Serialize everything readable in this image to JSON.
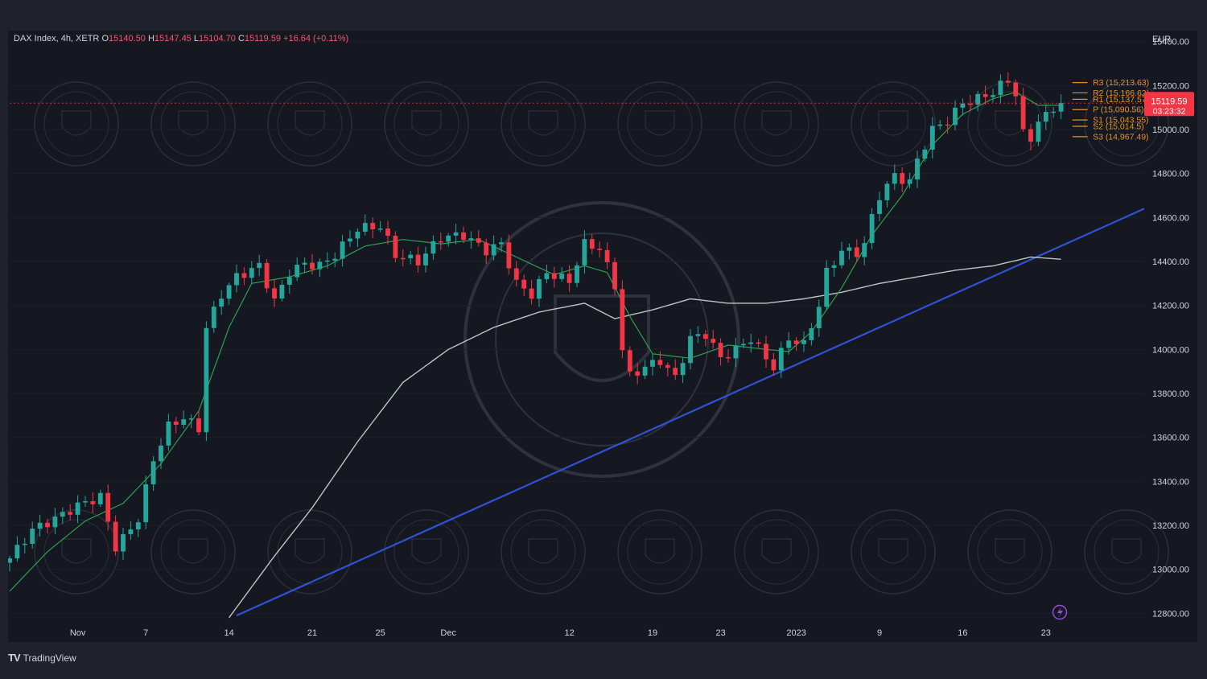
{
  "header": {
    "symbol": "DAX Index, 4h, XETR",
    "o_label": "O",
    "o_value": "15140.50",
    "h_label": "H",
    "h_value": "15147.45",
    "l_label": "L",
    "l_value": "15104.70",
    "c_label": "C",
    "c_value": "15119.59",
    "change": "+16.64 (+0.11%)"
  },
  "brand": {
    "logo": "TV",
    "name": "TradingView",
    "icon": "tradingview-logo-icon"
  },
  "colors": {
    "up": "#26a69a",
    "down": "#f23645",
    "ema": "#2e9e4f",
    "sma": "#b8c7c4",
    "trend": "#2f52d6",
    "pivot": "#e89028",
    "price": "#f23645"
  },
  "chart_data": {
    "type": "candlestick",
    "currency": "EUR",
    "ylim": [
      12750,
      15450
    ],
    "y_ticks": [
      15400,
      15200,
      15000,
      14800,
      14600,
      14400,
      14200,
      14000,
      13800,
      13600,
      13400,
      13200,
      13000,
      12800
    ],
    "y_tick_labels": [
      "15400.00",
      "15200.00",
      "15000.00",
      "14800.00",
      "14600.00",
      "14400.00",
      "14200.00",
      "14000.00",
      "13800.00",
      "13600.00",
      "13400.00",
      "13200.00",
      "13000.00",
      "12800.00"
    ],
    "x_ticks": [
      {
        "label": "Nov",
        "bar": 9
      },
      {
        "label": "7",
        "bar": 18
      },
      {
        "label": "14",
        "bar": 29
      },
      {
        "label": "21",
        "bar": 40
      },
      {
        "label": "25",
        "bar": 49
      },
      {
        "label": "Dec",
        "bar": 58
      },
      {
        "label": "12",
        "bar": 74
      },
      {
        "label": "19",
        "bar": 85
      },
      {
        "label": "23",
        "bar": 94
      },
      {
        "label": "2023",
        "bar": 104
      },
      {
        "label": "9",
        "bar": 115
      },
      {
        "label": "16",
        "bar": 126
      },
      {
        "label": "23",
        "bar": 137
      }
    ],
    "x_bar_range": [
      0,
      150
    ],
    "current_price": {
      "value": 15119.59,
      "label": "15119.59",
      "countdown": "03:23:32"
    },
    "pivot_levels": [
      {
        "name": "R3",
        "value": 15213.63,
        "label": "R3 (15,213.63)"
      },
      {
        "name": "R2",
        "value": 15166.62,
        "label": "R2 (15,166.62)"
      },
      {
        "name": "R1",
        "value": 15137.57,
        "label": "R1 (15,137.57)"
      },
      {
        "name": "P",
        "value": 15090.56,
        "label": "P (15,090.56)"
      },
      {
        "name": "S1",
        "value": 15043.55,
        "label": "S1 (15,043.55)"
      },
      {
        "name": "S2",
        "value": 15014.5,
        "label": "S2 (15,014.5)"
      },
      {
        "name": "S3",
        "value": 14967.49,
        "label": "S3 (14,967.49)"
      }
    ],
    "trendline": {
      "from": {
        "bar": 30,
        "value": 12790
      },
      "to": {
        "bar": 150,
        "value": 14640
      }
    },
    "anchors": [
      [
        0,
        13050
      ],
      [
        3,
        13180
      ],
      [
        6,
        13230
      ],
      [
        9,
        13290
      ],
      [
        12,
        13330
      ],
      [
        14,
        13100
      ],
      [
        15,
        13140
      ],
      [
        17,
        13230
      ],
      [
        19,
        13500
      ],
      [
        21,
        13650
      ],
      [
        23,
        13690
      ],
      [
        25,
        13640
      ],
      [
        26,
        14100
      ],
      [
        28,
        14250
      ],
      [
        30,
        14330
      ],
      [
        33,
        14380
      ],
      [
        35,
        14220
      ],
      [
        37,
        14350
      ],
      [
        39,
        14390
      ],
      [
        41,
        14380
      ],
      [
        43,
        14430
      ],
      [
        46,
        14550
      ],
      [
        49,
        14560
      ],
      [
        51,
        14430
      ],
      [
        54,
        14400
      ],
      [
        57,
        14510
      ],
      [
        60,
        14520
      ],
      [
        63,
        14450
      ],
      [
        65,
        14480
      ],
      [
        67,
        14300
      ],
      [
        69,
        14250
      ],
      [
        71,
        14350
      ],
      [
        74,
        14310
      ],
      [
        76,
        14480
      ],
      [
        78,
        14460
      ],
      [
        80,
        14290
      ],
      [
        81,
        14000
      ],
      [
        82,
        13880
      ],
      [
        84,
        13920
      ],
      [
        86,
        13950
      ],
      [
        88,
        13870
      ],
      [
        90,
        14050
      ],
      [
        92,
        14070
      ],
      [
        94,
        13960
      ],
      [
        96,
        14000
      ],
      [
        98,
        14050
      ],
      [
        100,
        13960
      ],
      [
        101,
        13920
      ],
      [
        103,
        14050
      ],
      [
        105,
        14020
      ],
      [
        107,
        14200
      ],
      [
        108,
        14350
      ],
      [
        110,
        14450
      ],
      [
        112,
        14440
      ],
      [
        113,
        14480
      ],
      [
        114,
        14600
      ],
      [
        115,
        14700
      ],
      [
        117,
        14790
      ],
      [
        119,
        14760
      ],
      [
        120,
        14860
      ],
      [
        122,
        15000
      ],
      [
        124,
        15040
      ],
      [
        126,
        15120
      ],
      [
        128,
        15140
      ],
      [
        130,
        15170
      ],
      [
        131,
        15200
      ],
      [
        132,
        15225
      ],
      [
        133,
        15160
      ],
      [
        134,
        14980
      ],
      [
        135,
        14960
      ],
      [
        136,
        15040
      ],
      [
        137,
        15060
      ],
      [
        138,
        15100
      ],
      [
        139,
        15119.59
      ]
    ],
    "ema_anchors": [
      [
        0,
        12900
      ],
      [
        5,
        13080
      ],
      [
        10,
        13220
      ],
      [
        15,
        13300
      ],
      [
        20,
        13480
      ],
      [
        25,
        13720
      ],
      [
        29,
        14100
      ],
      [
        32,
        14300
      ],
      [
        37,
        14330
      ],
      [
        42,
        14380
      ],
      [
        47,
        14470
      ],
      [
        52,
        14500
      ],
      [
        57,
        14480
      ],
      [
        62,
        14500
      ],
      [
        67,
        14420
      ],
      [
        72,
        14340
      ],
      [
        76,
        14380
      ],
      [
        79,
        14350
      ],
      [
        82,
        14150
      ],
      [
        85,
        13980
      ],
      [
        90,
        13960
      ],
      [
        95,
        14020
      ],
      [
        100,
        14000
      ],
      [
        103,
        13990
      ],
      [
        106,
        14080
      ],
      [
        110,
        14280
      ],
      [
        114,
        14520
      ],
      [
        118,
        14700
      ],
      [
        122,
        14930
      ],
      [
        126,
        15070
      ],
      [
        130,
        15140
      ],
      [
        133,
        15170
      ],
      [
        136,
        15110
      ],
      [
        139,
        15110
      ]
    ],
    "sma_anchors": [
      [
        29,
        12780
      ],
      [
        35,
        13060
      ],
      [
        40,
        13280
      ],
      [
        46,
        13580
      ],
      [
        52,
        13850
      ],
      [
        58,
        14000
      ],
      [
        64,
        14100
      ],
      [
        70,
        14170
      ],
      [
        76,
        14210
      ],
      [
        80,
        14140
      ],
      [
        85,
        14180
      ],
      [
        90,
        14230
      ],
      [
        95,
        14210
      ],
      [
        100,
        14210
      ],
      [
        105,
        14230
      ],
      [
        110,
        14260
      ],
      [
        115,
        14300
      ],
      [
        120,
        14330
      ],
      [
        125,
        14360
      ],
      [
        130,
        14380
      ],
      [
        135,
        14420
      ],
      [
        139,
        14410
      ]
    ]
  }
}
